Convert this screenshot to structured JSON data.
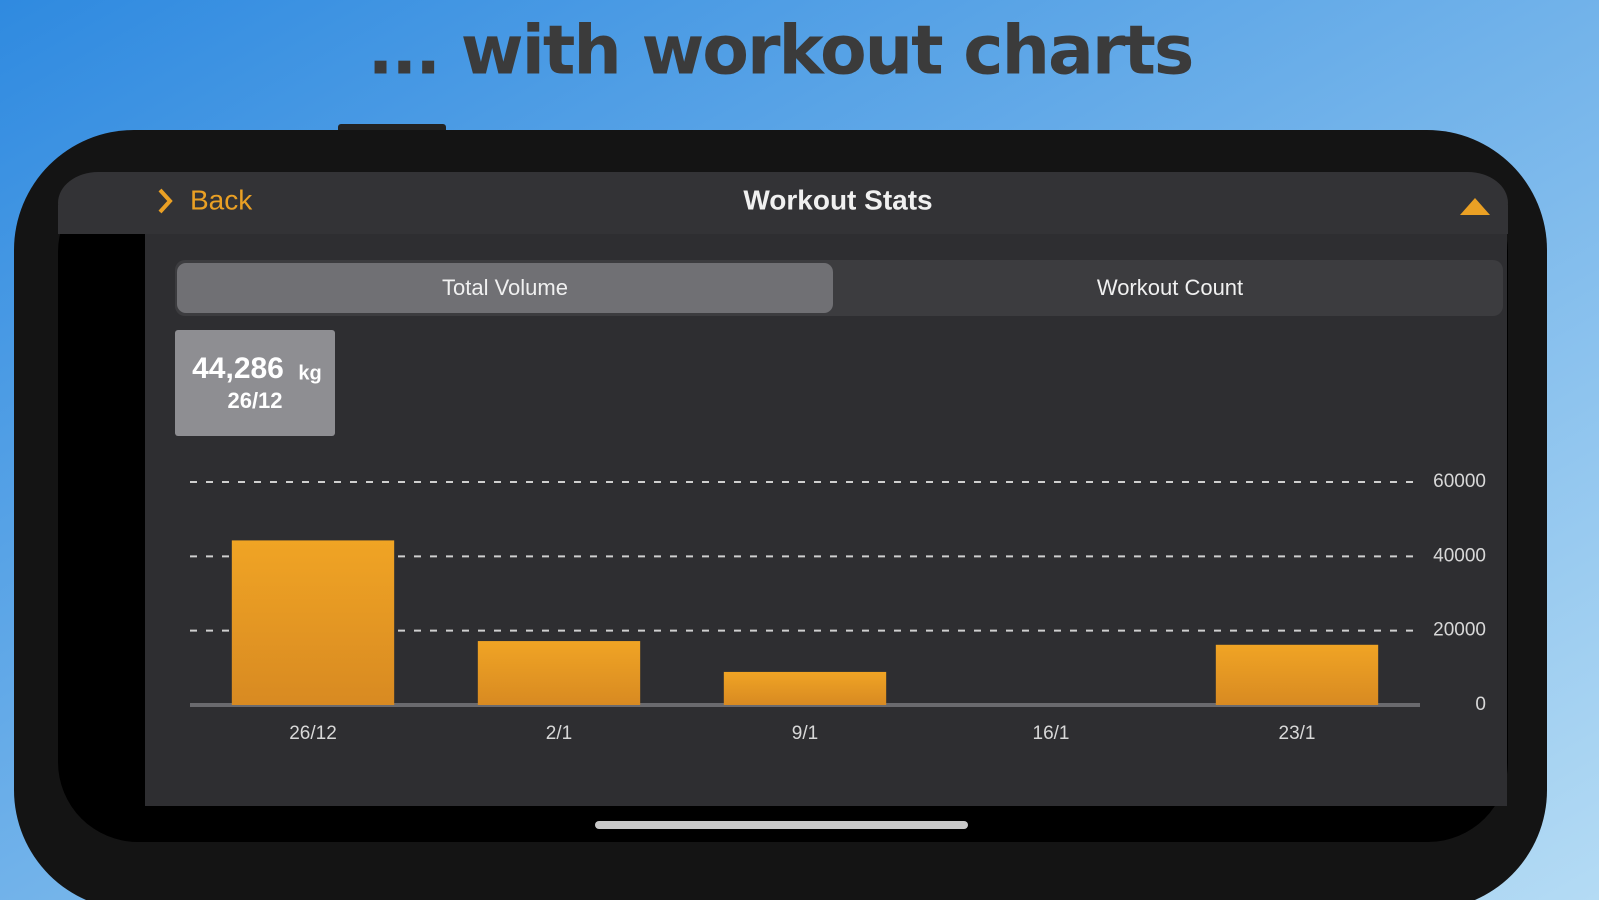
{
  "headline": "... with workout charts",
  "nav": {
    "back": "Back",
    "title": "Workout Stats"
  },
  "tabs": [
    "Total Volume",
    "Workout Count"
  ],
  "tooltip": {
    "value": "44,286",
    "unit": "kg",
    "date": "26/12"
  },
  "chart_data": {
    "type": "bar",
    "categories": [
      "26/12",
      "2/1",
      "9/1",
      "16/1",
      "23/1"
    ],
    "values": [
      44286,
      17200,
      8900,
      0,
      16200
    ],
    "color": "#eaa024",
    "ylim": [
      0,
      60000
    ],
    "yticks": [
      0,
      20000,
      40000,
      60000
    ],
    "grid": true
  }
}
